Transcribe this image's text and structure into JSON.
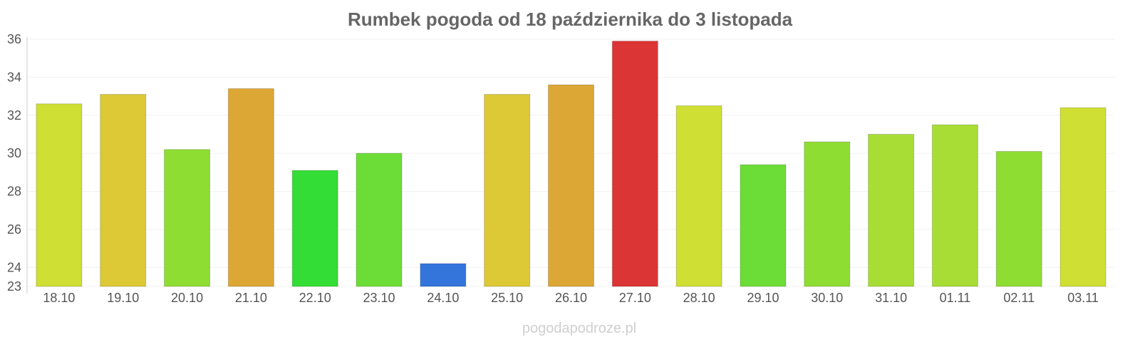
{
  "chart_data": {
    "type": "bar",
    "title": "Rumbek pogoda od 18 października do 3 listopada",
    "xlabel": "",
    "ylabel": "",
    "ylim": [
      23,
      36
    ],
    "yticks": [
      23,
      24,
      26,
      28,
      30,
      32,
      34,
      36
    ],
    "grid": true,
    "categories": [
      "18.10",
      "19.10",
      "20.10",
      "21.10",
      "22.10",
      "23.10",
      "24.10",
      "25.10",
      "26.10",
      "27.10",
      "28.10",
      "29.10",
      "30.10",
      "31.10",
      "01.11",
      "02.11",
      "03.11"
    ],
    "values": [
      32.6,
      33.1,
      30.2,
      33.4,
      29.1,
      30.0,
      24.2,
      33.1,
      33.6,
      35.9,
      32.5,
      29.4,
      30.6,
      31.0,
      31.5,
      30.1,
      32.4
    ],
    "colors": [
      "#cfdf33",
      "#dcc935",
      "#8edd33",
      "#dca734",
      "#33dd35",
      "#6bdd36",
      "#3475dc",
      "#dcc935",
      "#dca734",
      "#dc3535",
      "#cfdf33",
      "#6bdd36",
      "#8edd33",
      "#a7dd34",
      "#a7dd34",
      "#8edd33",
      "#cfdf33"
    ]
  },
  "footer": "pogodapodroze.pl"
}
